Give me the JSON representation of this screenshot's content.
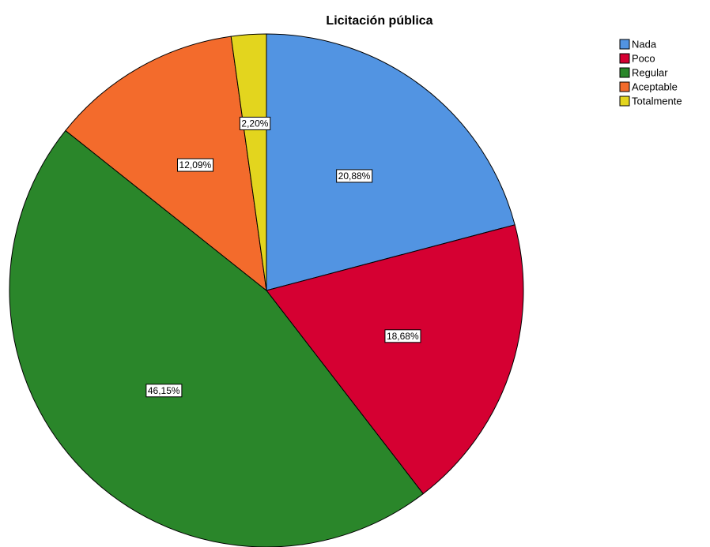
{
  "chart_data": {
    "type": "pie",
    "title": "Licitación pública",
    "categories": [
      "Nada",
      "Poco",
      "Regular",
      "Aceptable",
      "Totalmente"
    ],
    "values": [
      20.88,
      18.68,
      46.15,
      12.09,
      2.2
    ],
    "value_labels": [
      "20,88%",
      "18,68%",
      "46,15%",
      "12,09%",
      "2,20%"
    ],
    "colors": [
      "#5294e2",
      "#d50032",
      "#2a862a",
      "#f36b2c",
      "#e3d51e"
    ],
    "legend": "top-right"
  }
}
